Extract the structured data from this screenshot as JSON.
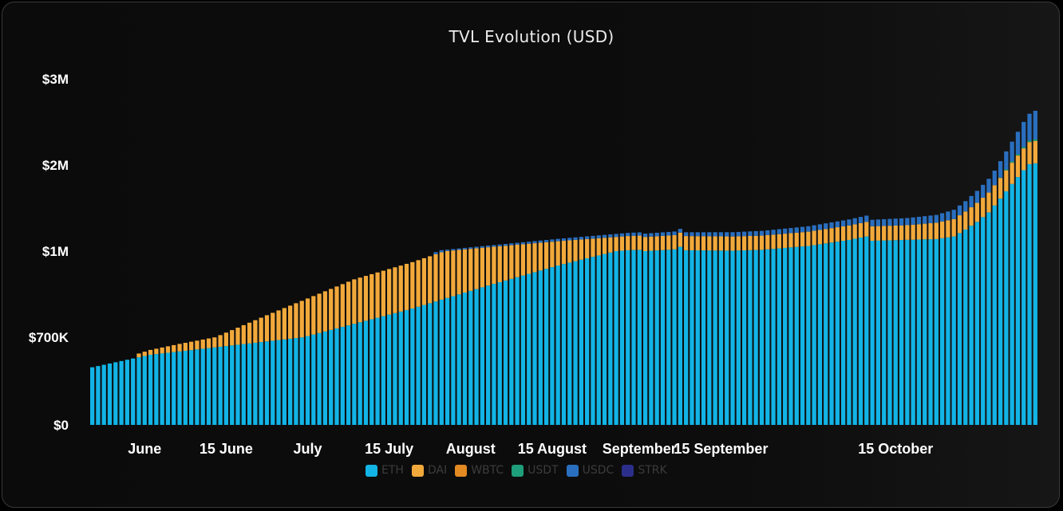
{
  "chart_data": {
    "type": "bar",
    "stacked": true,
    "title": "TVL Evolution (USD)",
    "xlabel": "",
    "ylabel": "",
    "y_ticks": [
      {
        "label": "$0",
        "value": 0
      },
      {
        "label": "$700K",
        "value": 700000
      },
      {
        "label": "$1M",
        "value": 1000000
      },
      {
        "label": "$2M",
        "value": 2000000
      },
      {
        "label": "$3M",
        "value": 3000000
      }
    ],
    "x_ticks": [
      {
        "label": "June",
        "index": 9
      },
      {
        "label": "15 June",
        "index": 23
      },
      {
        "label": "July",
        "index": 37
      },
      {
        "label": "15 July",
        "index": 51
      },
      {
        "label": "August",
        "index": 65
      },
      {
        "label": "15 August",
        "index": 79
      },
      {
        "label": "September",
        "index": 94
      },
      {
        "label": "15 September",
        "index": 108
      },
      {
        "label": "15 October",
        "index": 138
      }
    ],
    "legend_position": "bottom",
    "grid": false,
    "series": [
      {
        "name": "ETH",
        "color": "#12b4e6",
        "keypoints": [
          [
            0,
            460000
          ],
          [
            10,
            560000
          ],
          [
            25,
            640000
          ],
          [
            40,
            720000
          ],
          [
            55,
            800000
          ],
          [
            68,
            880000
          ],
          [
            80,
            950000
          ],
          [
            92,
            1010000
          ],
          [
            94,
            1015000
          ],
          [
            95,
            1000000
          ],
          [
            100,
            1020000
          ],
          [
            101,
            1050000
          ],
          [
            102,
            1010000
          ],
          [
            110,
            1005000
          ],
          [
            115,
            1015000
          ],
          [
            123,
            1060000
          ],
          [
            130,
            1130000
          ],
          [
            133,
            1170000
          ],
          [
            134,
            1120000
          ],
          [
            145,
            1140000
          ],
          [
            148,
            1170000
          ],
          [
            150,
            1250000
          ],
          [
            152,
            1340000
          ],
          [
            154,
            1450000
          ],
          [
            156,
            1610000
          ],
          [
            158,
            1780000
          ],
          [
            160,
            1940000
          ],
          [
            161,
            2010000
          ],
          [
            162,
            2020000
          ]
        ]
      },
      {
        "name": "DAI",
        "color": "#f2a93b",
        "keypoints": [
          [
            0,
            0
          ],
          [
            7,
            0
          ],
          [
            8,
            30000
          ],
          [
            15,
            60000
          ],
          [
            30,
            110000
          ],
          [
            45,
            155000
          ],
          [
            60,
            165000
          ],
          [
            80,
            165000
          ],
          [
            100,
            165000
          ],
          [
            120,
            165000
          ],
          [
            140,
            170000
          ],
          [
            150,
            210000
          ],
          [
            156,
            240000
          ],
          [
            162,
            260000
          ]
        ]
      },
      {
        "name": "WBTC",
        "color": "#e48a22",
        "keypoints": [
          [
            0,
            0
          ],
          [
            162,
            0
          ]
        ]
      },
      {
        "name": "USDT",
        "color": "#1e9e7a",
        "keypoints": [
          [
            0,
            0
          ],
          [
            155,
            0
          ],
          [
            158,
            15000
          ],
          [
            162,
            20000
          ]
        ]
      },
      {
        "name": "USDC",
        "color": "#2a6fbf",
        "keypoints": [
          [
            0,
            0
          ],
          [
            58,
            0
          ],
          [
            60,
            15000
          ],
          [
            70,
            20000
          ],
          [
            90,
            35000
          ],
          [
            110,
            50000
          ],
          [
            130,
            70000
          ],
          [
            145,
            90000
          ],
          [
            150,
            120000
          ],
          [
            155,
            170000
          ],
          [
            158,
            230000
          ],
          [
            160,
            290000
          ],
          [
            161,
            310000
          ],
          [
            162,
            330000
          ]
        ]
      },
      {
        "name": "STRK",
        "color": "#2c2f8a",
        "keypoints": [
          [
            0,
            0
          ],
          [
            162,
            0
          ]
        ]
      }
    ],
    "num_bars": 163
  }
}
